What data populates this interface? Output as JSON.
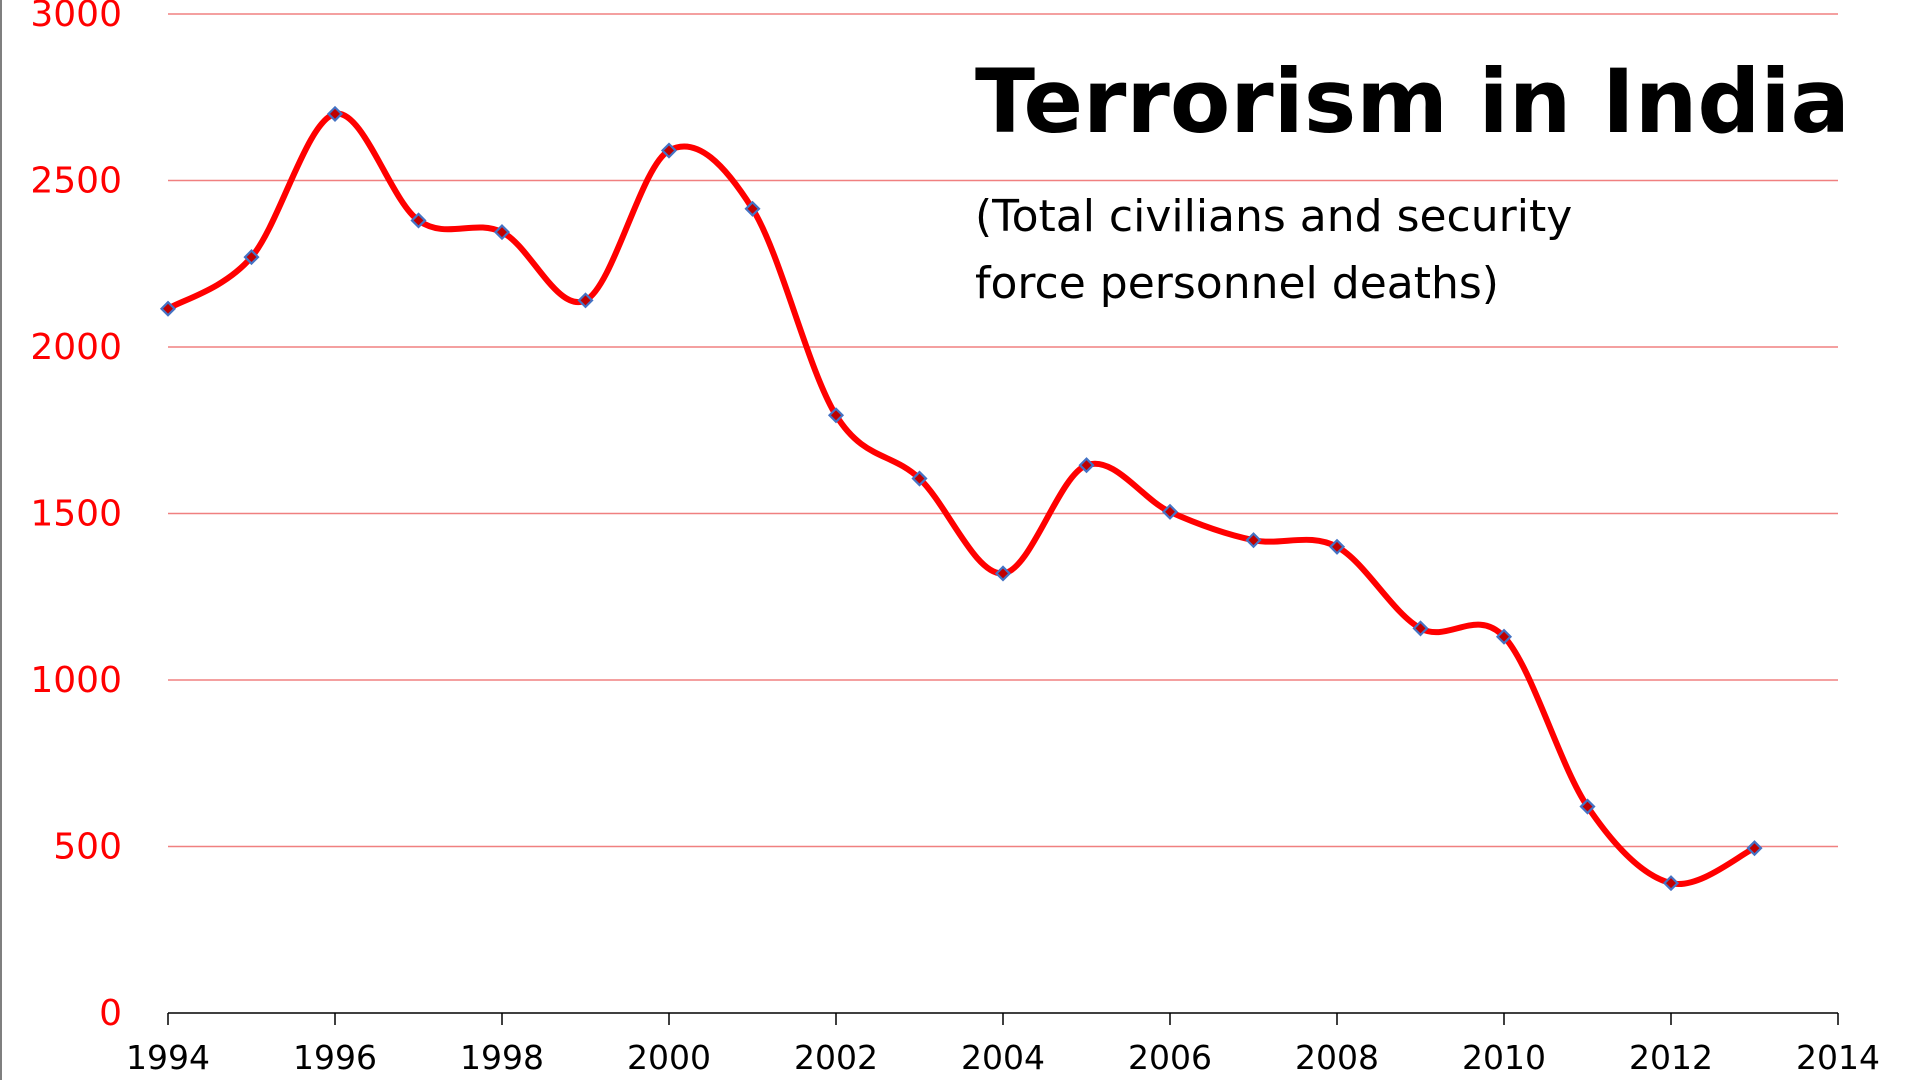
{
  "chart_data": {
    "type": "line",
    "title": "Terrorism in India",
    "subtitle": "(Total civilians and security force personnel deaths)",
    "xlabel": "",
    "ylabel": "",
    "xlim": [
      1994,
      2014
    ],
    "ylim": [
      0,
      3000
    ],
    "x_ticks": [
      1994,
      1996,
      1998,
      2000,
      2002,
      2004,
      2006,
      2008,
      2010,
      2012,
      2014
    ],
    "y_ticks": [
      0,
      500,
      1000,
      1500,
      2000,
      2500,
      3000
    ],
    "grid": "horizontal",
    "legend": "none",
    "line_color": "#ff0000",
    "marker_color": "#4472c4",
    "marker_fill": "#c00000",
    "tick_color": "#ff0000",
    "grid_color": "#f08080",
    "series": [
      {
        "x": [
          1994,
          1995,
          1996,
          1997,
          1998,
          1999,
          2000,
          2001,
          2002,
          2003,
          2004,
          2005,
          2006,
          2007,
          2008,
          2009,
          2010,
          2011,
          2012,
          2013
        ],
        "values": [
          2115,
          2270,
          2700,
          2380,
          2345,
          2140,
          2590,
          2415,
          1795,
          1605,
          1320,
          1645,
          1505,
          1420,
          1400,
          1155,
          1130,
          620,
          390,
          495
        ]
      }
    ]
  }
}
